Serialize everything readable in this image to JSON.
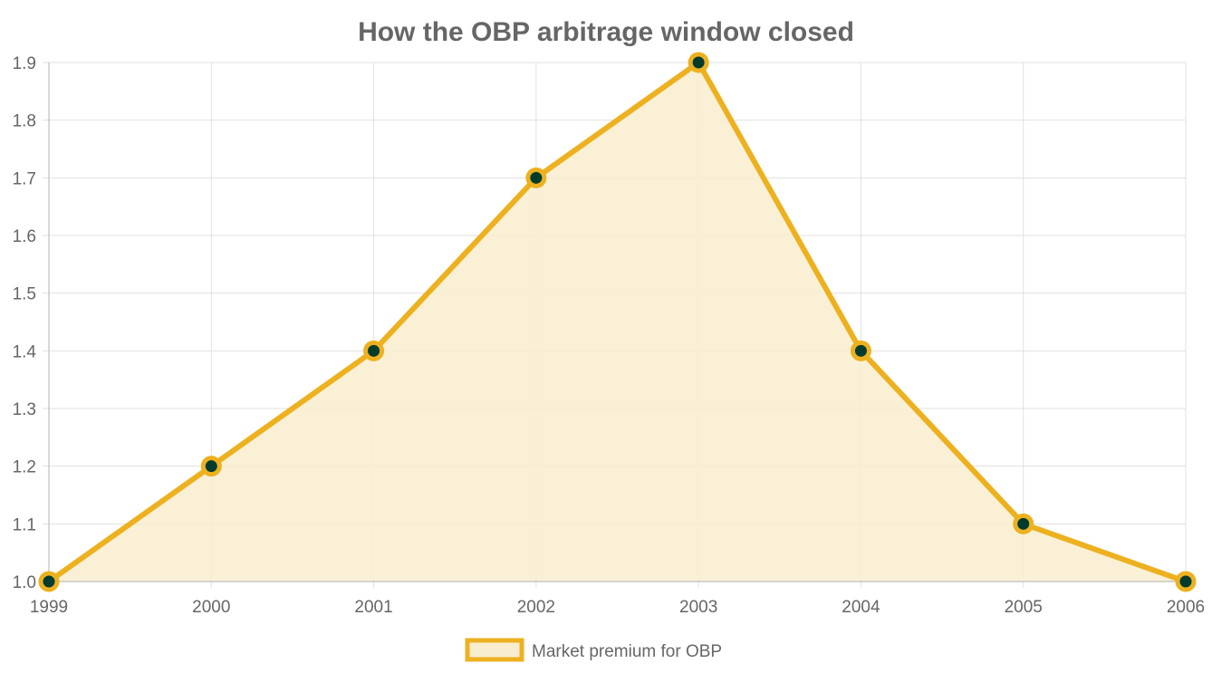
{
  "chart_data": {
    "type": "area",
    "title": "How the OBP arbitrage window closed",
    "xlabel": "",
    "ylabel": "",
    "categories": [
      "1999",
      "2000",
      "2001",
      "2002",
      "2003",
      "2004",
      "2005",
      "2006"
    ],
    "y_ticks": [
      "1.0",
      "1.1",
      "1.2",
      "1.3",
      "1.4",
      "1.5",
      "1.6",
      "1.7",
      "1.8",
      "1.9"
    ],
    "ylim": [
      1.0,
      1.9
    ],
    "grid": true,
    "legend_position": "bottom",
    "series": [
      {
        "name": "Market premium for OBP",
        "values": [
          1.0,
          1.2,
          1.4,
          1.7,
          1.9,
          1.4,
          1.1,
          1.0
        ],
        "line_color": "#EDB120",
        "fill_color": "#F9EDCF",
        "point_color": "#003B2D"
      }
    ]
  }
}
